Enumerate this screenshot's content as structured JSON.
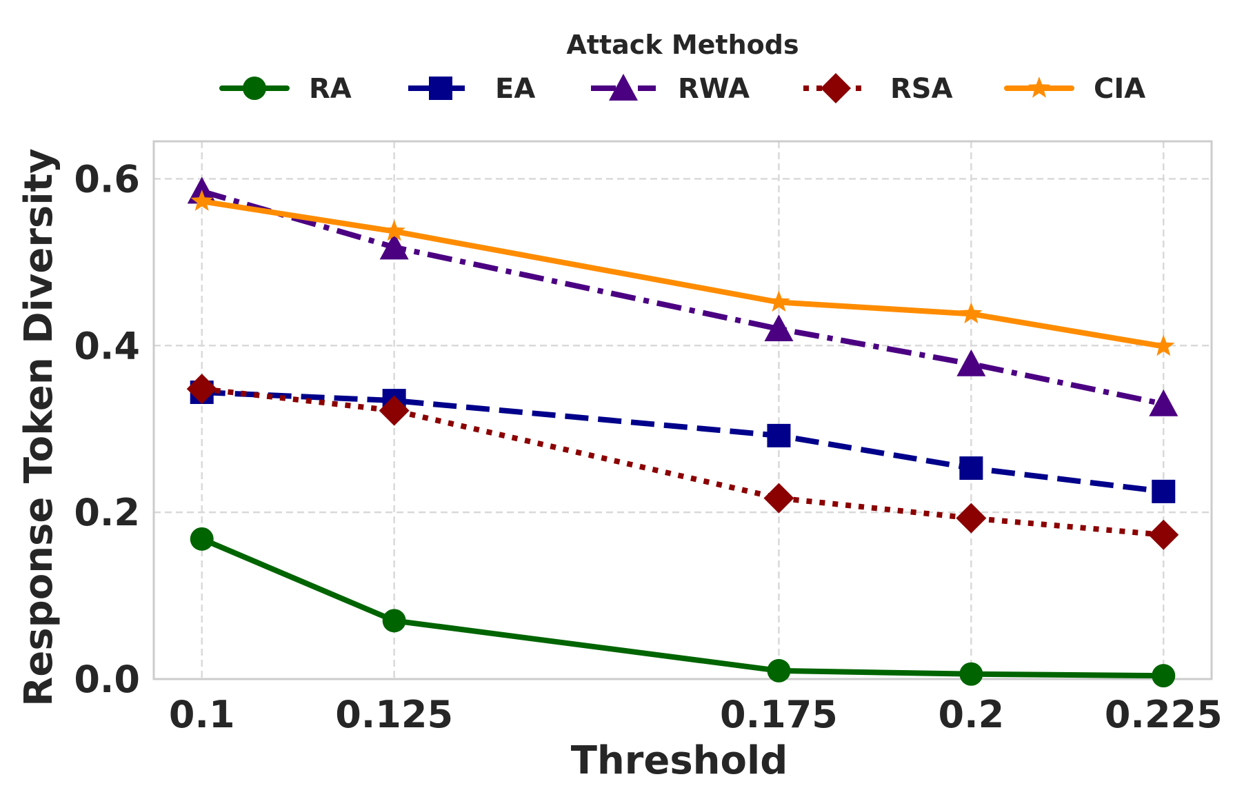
{
  "chart_data": {
    "type": "line",
    "title": "",
    "xlabel": "Threshold",
    "ylabel": "Response Token Diversity",
    "x": [
      0.1,
      0.125,
      0.175,
      0.2,
      0.225
    ],
    "x_tick_labels": [
      "0.1",
      "0.125",
      "0.175",
      "0.2",
      "0.225"
    ],
    "xlim": [
      0.09375,
      0.23125
    ],
    "y_ticks": [
      0.0,
      0.2,
      0.4,
      0.6
    ],
    "y_tick_labels": [
      "0.0",
      "0.2",
      "0.4",
      "0.6"
    ],
    "ylim": [
      0.0,
      0.645
    ],
    "grid": true,
    "legend": {
      "title": "Attack Methods",
      "placement": "top-center"
    },
    "series": [
      {
        "name": "RA",
        "values": [
          0.168,
          0.07,
          0.01,
          0.006,
          0.004
        ],
        "color": "#006400",
        "dash": "solid",
        "marker": "circle"
      },
      {
        "name": "EA",
        "values": [
          0.344,
          0.334,
          0.292,
          0.253,
          0.225
        ],
        "color": "#00008b",
        "dash": "dashed",
        "marker": "square"
      },
      {
        "name": "RWA",
        "values": [
          0.585,
          0.518,
          0.42,
          0.378,
          0.33
        ],
        "color": "#4b0082",
        "dash": "dashdot",
        "marker": "triangle"
      },
      {
        "name": "RSA",
        "values": [
          0.348,
          0.322,
          0.217,
          0.193,
          0.173
        ],
        "color": "#8b0000",
        "dash": "dotted",
        "marker": "diamond"
      },
      {
        "name": "CIA",
        "values": [
          0.573,
          0.537,
          0.452,
          0.438,
          0.399
        ],
        "color": "#ff8c00",
        "dash": "solid",
        "marker": "star"
      }
    ]
  }
}
